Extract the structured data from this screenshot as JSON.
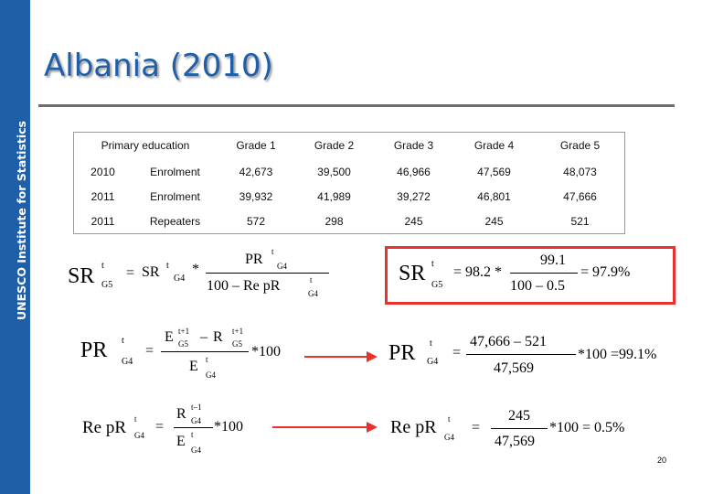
{
  "sidebar": {
    "label": "UNESCO Institute for Statistics"
  },
  "title": "Albania (2010)",
  "table": {
    "header": {
      "group": "Primary education",
      "grades": [
        "Grade 1",
        "Grade 2",
        "Grade 3",
        "Grade 4",
        "Grade 5"
      ]
    },
    "rows": [
      {
        "year": "2010",
        "type": "Enrolment",
        "values": [
          "42,673",
          "39,500",
          "46,966",
          "47,569",
          "48,073"
        ]
      },
      {
        "year": "2011",
        "type": "Enrolment",
        "values": [
          "39,932",
          "41,989",
          "39,272",
          "46,801",
          "47,666"
        ]
      },
      {
        "year": "2011",
        "type": "Repeaters",
        "values": [
          "572",
          "298",
          "245",
          "245",
          "521"
        ]
      }
    ]
  },
  "formulas": {
    "sr_general": {
      "lhs": "SR",
      "lhs_sup": "t",
      "lhs_sub": "G5",
      "eq": "=",
      "term": "SR",
      "term_sup": "t",
      "term_sub": "G4",
      "times": "*",
      "num": "PR",
      "num_sup": "t",
      "num_sub": "G4",
      "den": "100 – Re pR",
      "den_sup": "t",
      "den_sub": "G4"
    },
    "sr_value": {
      "lhs": "SR",
      "lhs_sup": "t",
      "lhs_sub": "G5",
      "eq": "= 98.2 *",
      "num": "99.1",
      "den": "100 – 0.5",
      "result": "= 97.9%"
    },
    "pr_general": {
      "lhs": "PR",
      "lhs_sup": "t",
      "lhs_sub": "G4",
      "eq": "=",
      "num_a": "E",
      "num_a_sup": "t+1",
      "num_a_sub": "G5",
      "minus": "–",
      "num_b": "R",
      "num_b_sup": "t+1",
      "num_b_sub": "G5",
      "den": "E",
      "den_sup": "t",
      "den_sub": "G4",
      "mult": "*100"
    },
    "pr_value": {
      "lhs": "PR",
      "lhs_sup": "t",
      "lhs_sub": "G4",
      "eq": "=",
      "num": "47,666 – 521",
      "den": "47,569",
      "result": "*100 =99.1%"
    },
    "rep_general": {
      "lhs": "Re pR",
      "lhs_sup": "t",
      "lhs_sub": "G4",
      "eq": "=",
      "num": "R",
      "num_sup": "t–1",
      "num_sub": "G4",
      "den": "E",
      "den_sup": "t",
      "den_sub": "G4",
      "mult": "*100"
    },
    "rep_value": {
      "lhs": "Re pR",
      "lhs_sup": "t",
      "lhs_sub": "G4",
      "eq": "=",
      "num": "245",
      "den": "47,569",
      "result": "*100 = 0.5%"
    }
  },
  "colors": {
    "brand": "#1f5fa8",
    "highlight": "#e8322b"
  },
  "page_number": "20"
}
